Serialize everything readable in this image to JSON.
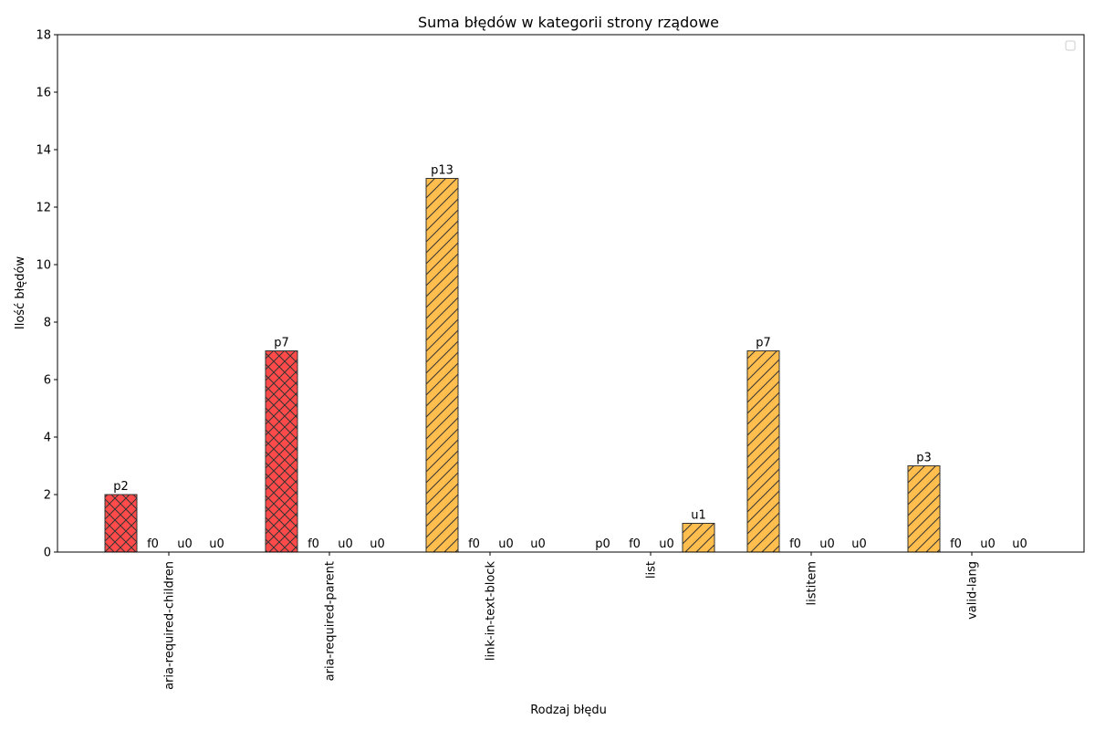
{
  "chart_data": {
    "type": "bar",
    "title": "Suma błędów w kategorii strony rządowe",
    "xlabel": "Rodzaj błędu",
    "ylabel": "Ilość błędów",
    "ylim": [
      0,
      18
    ],
    "yticks": [
      0,
      2,
      4,
      6,
      8,
      10,
      12,
      14,
      16,
      18
    ],
    "grid": false,
    "legend": "top-right",
    "categories": [
      "aria-required-children",
      "aria-required-parent",
      "link-in-text-block",
      "list",
      "listitem",
      "valid-lang"
    ],
    "series": [
      {
        "prefix": "p",
        "values": [
          2,
          7,
          13,
          0,
          7,
          3
        ],
        "colors": [
          "#ff4040",
          "#ff4040",
          "#ffbb44",
          "#ffbb44",
          "#ffbb44",
          "#ffbb44"
        ],
        "hatches": [
          "crosshatch",
          "crosshatch",
          "diagonal",
          "diagonal",
          "diagonal",
          "diagonal"
        ]
      },
      {
        "prefix": "f",
        "values": [
          0,
          0,
          0,
          0,
          0,
          0
        ],
        "colors": [
          "#ffbb44",
          "#ffbb44",
          "#ffbb44",
          "#ffbb44",
          "#ffbb44",
          "#ffbb44"
        ],
        "hatches": [
          "diagonal",
          "diagonal",
          "diagonal",
          "diagonal",
          "diagonal",
          "diagonal"
        ]
      },
      {
        "prefix": "u",
        "values": [
          0,
          0,
          0,
          0,
          0,
          0
        ],
        "colors": [
          "#ffbb44",
          "#ffbb44",
          "#ffbb44",
          "#ffbb44",
          "#ffbb44",
          "#ffbb44"
        ],
        "hatches": [
          "diagonal",
          "diagonal",
          "diagonal",
          "diagonal",
          "diagonal",
          "diagonal"
        ]
      },
      {
        "prefix": "u",
        "values": [
          0,
          0,
          0,
          1,
          0,
          0
        ],
        "colors": [
          "#ffbb44",
          "#ffbb44",
          "#ffbb44",
          "#ffbb44",
          "#ffbb44",
          "#ffbb44"
        ],
        "hatches": [
          "diagonal",
          "diagonal",
          "diagonal",
          "diagonal",
          "diagonal",
          "diagonal"
        ]
      }
    ]
  }
}
